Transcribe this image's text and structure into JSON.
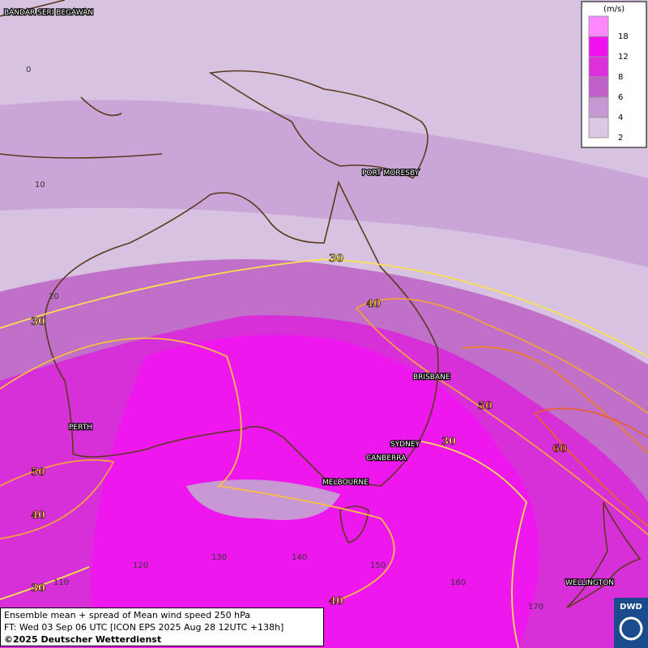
{
  "cities": [
    "BANDAR SERI BEGAWAN",
    "PORT MORESBY",
    "BRISBANE",
    "PERTH",
    "SYDNEY",
    "CANBERRA",
    "MELBOURNE",
    "WELLINGTON"
  ],
  "latitude_labels": [
    0,
    10,
    20
  ],
  "longitude_labels": [
    110,
    120,
    130,
    140,
    150,
    160,
    170
  ],
  "contour_labels": [
    30,
    30,
    40,
    50,
    60,
    30,
    50,
    40,
    40,
    30
  ],
  "legend": {
    "unit": "(m/s)",
    "levels": [
      {
        "value": 18,
        "color": "#ff88ff"
      },
      {
        "value": 12,
        "color": "#f010f0"
      },
      {
        "value": 8,
        "color": "#dd30dd"
      },
      {
        "value": 6,
        "color": "#c060c8"
      },
      {
        "value": 4,
        "color": "#c898d4"
      },
      {
        "value": 2,
        "color": "#dcc8e4"
      }
    ]
  },
  "footer": [
    "Ensemble mean + spread of Mean wind speed 250 hPa",
    "FT: Wed 03 Sep 06 UTC [ICON EPS 2025 Aug 28 12UTC +138h]",
    "©2025 Deutscher Wetterdienst"
  ],
  "logo": "DWD"
}
